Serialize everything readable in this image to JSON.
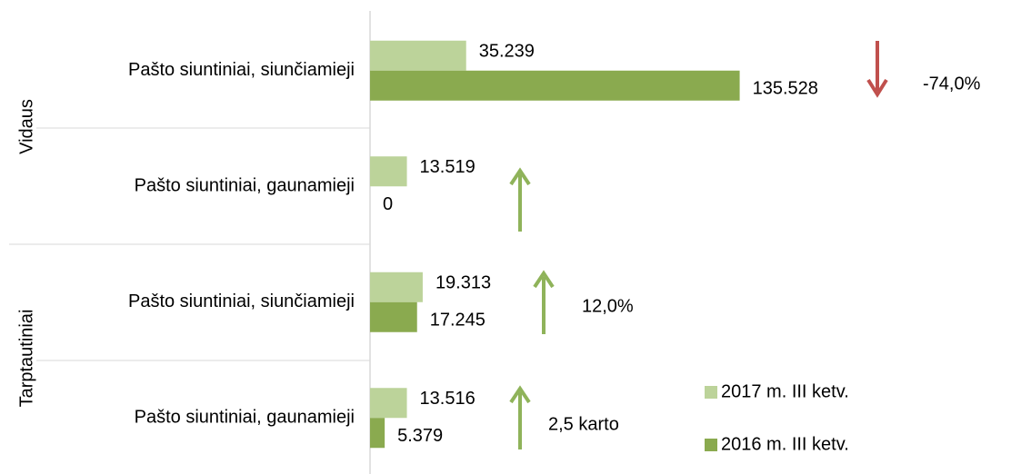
{
  "chart_data": {
    "type": "bar",
    "orientation": "horizontal",
    "categories": [
      "Pašto siuntiniai, siunčiamieji",
      "Pašto siuntiniai, gaunamieji",
      "Pašto siuntiniai, siunčiamieji",
      "Pašto siuntiniai, gaunamieji"
    ],
    "groups": [
      "Vidaus",
      "Tarptautiniai"
    ],
    "series": [
      {
        "name": "2017 m. III ketv.",
        "color": "#bcd39a",
        "values": [
          35239,
          13519,
          19313,
          13516
        ],
        "value_labels": [
          "35.239",
          "13.519",
          "19.313",
          "13.516"
        ]
      },
      {
        "name": "2016 m. III ketv.",
        "color": "#8aaa4f",
        "values": [
          135528,
          0,
          17245,
          5379
        ],
        "value_labels": [
          "135.528",
          "0",
          "17.245",
          "5.379"
        ]
      }
    ],
    "annotations": [
      "-74,0%",
      "12,0%",
      "2,5 karto"
    ],
    "xlim": [
      0,
      235000
    ],
    "legend": "lower right"
  }
}
